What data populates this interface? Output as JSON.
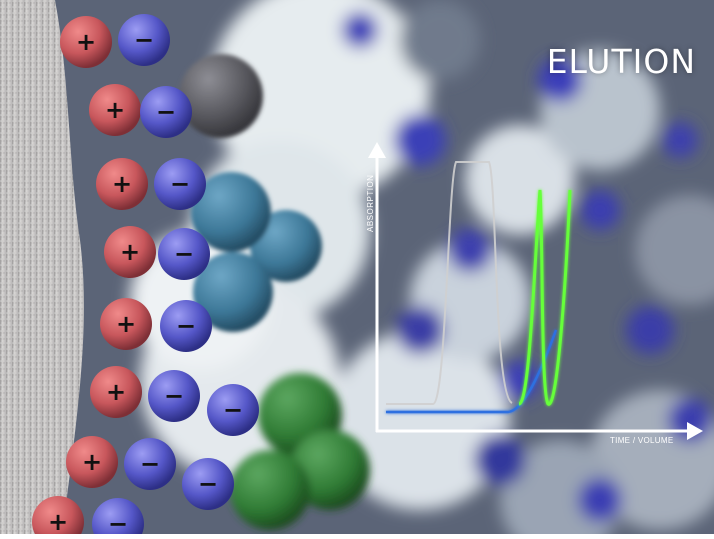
{
  "title": "ELUTION",
  "chart": {
    "y_axis_label": "ABSORPTION",
    "x_axis_label": "TIME / VOLUME"
  },
  "ion_symbols": {
    "positive": "+",
    "negative": "−"
  },
  "colors": {
    "positive_ion": "#c8575c",
    "negative_ion": "#5557c8",
    "protein_gray": "#56565c",
    "protein_teal": "#3c7797",
    "protein_green": "#2f7b34",
    "trace_gray": "#cfcfcf",
    "trace_green": "#66ff3a",
    "trace_blue": "#2e6fe0",
    "axis": "#ffffff"
  }
}
